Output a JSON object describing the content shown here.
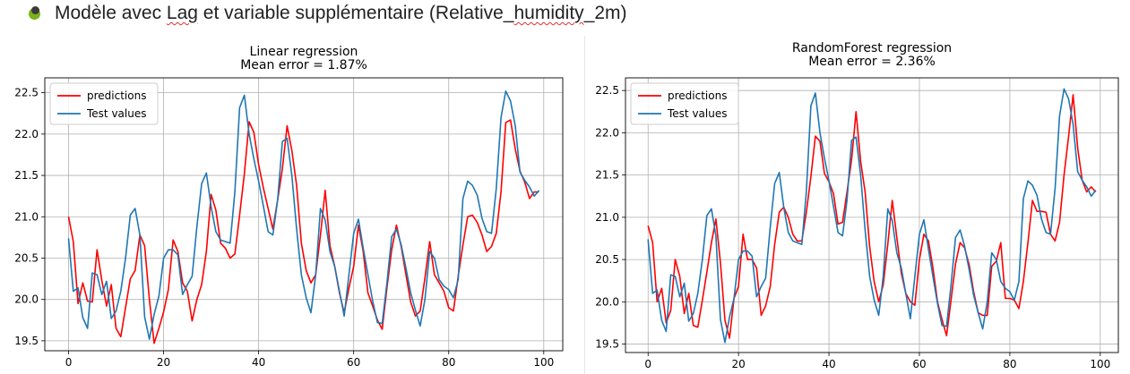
{
  "heading": {
    "prefix": "Modèle avec ",
    "lag_word": "Lag",
    "middle": " et variable supplémentaire (Relative_",
    "humidity_word": "humidity",
    "suffix": "_2m)"
  },
  "colors": {
    "predictions": "#ff0000",
    "test_values": "#1f77b4",
    "bullet": "#7ab317"
  },
  "chart_data": [
    {
      "type": "line",
      "title": "Linear regression",
      "subtitle": "Mean error = 1.87%",
      "xlim": [
        -5,
        104
      ],
      "ylim": [
        19.38,
        22.68
      ],
      "xticks": [
        0,
        20,
        40,
        60,
        80,
        100
      ],
      "yticks": [
        19.5,
        20.0,
        20.5,
        21.0,
        21.5,
        22.0,
        22.5
      ],
      "grid": true,
      "legend": "top-left",
      "series": [
        {
          "name": "predictions",
          "color": "#ff0000",
          "x": [
            0,
            1,
            2,
            3,
            4,
            5,
            6,
            7,
            8,
            9,
            10,
            11,
            12,
            13,
            14,
            15,
            16,
            17,
            18,
            19,
            20,
            21,
            22,
            23,
            24,
            25,
            26,
            27,
            28,
            29,
            30,
            31,
            32,
            33,
            34,
            35,
            36,
            37,
            38,
            39,
            40,
            41,
            42,
            43,
            44,
            45,
            46,
            47,
            48,
            49,
            50,
            51,
            52,
            53,
            54,
            55,
            56,
            57,
            58,
            59,
            60,
            61,
            62,
            63,
            64,
            65,
            66,
            67,
            68,
            69,
            70,
            71,
            72,
            73,
            74,
            75,
            76,
            77,
            78,
            79,
            80,
            81,
            82,
            83,
            84,
            85,
            86,
            87,
            88,
            89,
            90,
            91,
            92,
            93,
            94,
            95,
            96,
            97,
            98,
            99
          ],
          "values": [
            21.0,
            20.7,
            19.95,
            20.2,
            19.98,
            19.97,
            20.6,
            20.23,
            19.92,
            20.18,
            19.65,
            19.55,
            19.9,
            20.25,
            20.35,
            20.78,
            20.65,
            20.0,
            19.47,
            19.65,
            19.85,
            20.12,
            20.72,
            20.58,
            20.2,
            20.1,
            19.74,
            20.0,
            20.18,
            20.58,
            21.27,
            21.08,
            20.68,
            20.62,
            20.5,
            20.55,
            21.02,
            21.52,
            22.15,
            22.02,
            21.63,
            21.35,
            21.1,
            20.85,
            21.2,
            21.58,
            22.1,
            21.8,
            21.38,
            20.68,
            20.35,
            20.2,
            20.3,
            20.78,
            21.32,
            20.65,
            20.4,
            20.08,
            19.84,
            20.14,
            20.4,
            20.9,
            20.58,
            20.08,
            19.92,
            19.75,
            19.64,
            20.14,
            20.6,
            20.9,
            20.64,
            20.3,
            19.97,
            19.8,
            19.86,
            20.26,
            20.7,
            20.3,
            20.2,
            20.1,
            19.9,
            19.86,
            20.28,
            20.66,
            21.0,
            21.02,
            20.93,
            20.78,
            20.58,
            20.64,
            20.8,
            21.3,
            22.14,
            22.17,
            21.82,
            21.55,
            21.42,
            21.22,
            21.3,
            21.3
          ]
        },
        {
          "name": "Test values",
          "color": "#1f77b4",
          "x": [
            0,
            1,
            2,
            3,
            4,
            5,
            6,
            7,
            8,
            9,
            10,
            11,
            12,
            13,
            14,
            15,
            16,
            17,
            18,
            19,
            20,
            21,
            22,
            23,
            24,
            25,
            26,
            27,
            28,
            29,
            30,
            31,
            32,
            33,
            34,
            35,
            36,
            37,
            38,
            39,
            40,
            41,
            42,
            43,
            44,
            45,
            46,
            47,
            48,
            49,
            50,
            51,
            52,
            53,
            54,
            55,
            56,
            57,
            58,
            59,
            60,
            61,
            62,
            63,
            64,
            65,
            66,
            67,
            68,
            69,
            70,
            71,
            72,
            73,
            74,
            75,
            76,
            77,
            78,
            79,
            80,
            81,
            82,
            83,
            84,
            85,
            86,
            87,
            88,
            89,
            90,
            91,
            92,
            93,
            94,
            95,
            96,
            97,
            98,
            99
          ],
          "values": [
            20.74,
            20.1,
            20.14,
            19.78,
            19.65,
            20.32,
            20.3,
            20.06,
            20.22,
            19.77,
            19.86,
            20.1,
            20.5,
            21.02,
            21.1,
            20.78,
            19.79,
            19.52,
            19.82,
            20.04,
            20.5,
            20.6,
            20.6,
            20.54,
            20.06,
            20.18,
            20.28,
            20.88,
            21.4,
            21.53,
            21.12,
            20.82,
            20.72,
            20.7,
            20.68,
            21.3,
            22.32,
            22.47,
            22.0,
            21.7,
            21.43,
            21.13,
            20.82,
            20.78,
            21.2,
            21.91,
            21.95,
            21.5,
            20.85,
            20.3,
            20.02,
            19.84,
            20.3,
            21.1,
            20.96,
            20.58,
            20.4,
            20.1,
            19.8,
            20.3,
            20.8,
            20.97,
            20.62,
            20.3,
            19.98,
            19.72,
            19.71,
            20.2,
            20.76,
            20.85,
            20.66,
            20.38,
            20.08,
            19.87,
            19.68,
            20.0,
            20.58,
            20.5,
            20.24,
            20.16,
            20.12,
            20.02,
            20.24,
            21.22,
            21.43,
            21.38,
            21.26,
            20.98,
            20.82,
            20.8,
            21.34,
            22.2,
            22.52,
            22.4,
            22.1,
            21.54,
            21.44,
            21.36,
            21.25,
            21.32
          ]
        }
      ]
    },
    {
      "type": "line",
      "title": "RandomForest regression",
      "subtitle": "Mean error = 2.36%",
      "xlim": [
        -5,
        104
      ],
      "ylim": [
        19.4,
        22.65
      ],
      "xticks": [
        0,
        20,
        40,
        60,
        80,
        100
      ],
      "yticks": [
        19.5,
        20.0,
        20.5,
        21.0,
        21.5,
        22.0,
        22.5
      ],
      "grid": true,
      "legend": "top-left",
      "series": [
        {
          "name": "predictions",
          "color": "#ff0000",
          "x": [
            0,
            1,
            2,
            3,
            4,
            5,
            6,
            7,
            8,
            9,
            10,
            11,
            12,
            13,
            14,
            15,
            16,
            17,
            18,
            19,
            20,
            21,
            22,
            23,
            24,
            25,
            26,
            27,
            28,
            29,
            30,
            31,
            32,
            33,
            34,
            35,
            36,
            37,
            38,
            39,
            40,
            41,
            42,
            43,
            44,
            45,
            46,
            47,
            48,
            49,
            50,
            51,
            52,
            53,
            54,
            55,
            56,
            57,
            58,
            59,
            60,
            61,
            62,
            63,
            64,
            65,
            66,
            67,
            68,
            69,
            70,
            71,
            72,
            73,
            74,
            75,
            76,
            77,
            78,
            79,
            80,
            81,
            82,
            83,
            84,
            85,
            86,
            87,
            88,
            89,
            90,
            91,
            92,
            93,
            94,
            95,
            96,
            97,
            98,
            99
          ],
          "values": [
            20.9,
            20.7,
            20.0,
            20.16,
            19.75,
            19.9,
            20.5,
            20.3,
            19.86,
            20.1,
            19.72,
            19.7,
            20.02,
            20.35,
            20.7,
            20.98,
            20.46,
            19.78,
            19.57,
            20.04,
            20.18,
            20.8,
            20.5,
            20.5,
            20.4,
            19.84,
            19.95,
            20.18,
            20.68,
            21.06,
            21.12,
            21.0,
            20.8,
            20.72,
            20.72,
            21.06,
            21.48,
            21.96,
            21.9,
            21.52,
            21.42,
            21.28,
            20.92,
            20.94,
            21.3,
            21.68,
            22.25,
            21.66,
            21.3,
            20.65,
            20.24,
            20.0,
            20.2,
            20.68,
            21.2,
            20.76,
            20.34,
            20.1,
            20.0,
            19.96,
            20.5,
            20.8,
            20.72,
            20.4,
            20.0,
            19.79,
            19.6,
            20.02,
            20.45,
            20.7,
            20.64,
            20.44,
            20.12,
            19.87,
            19.84,
            19.84,
            20.42,
            20.48,
            20.7,
            20.04,
            20.04,
            20.02,
            19.92,
            20.24,
            20.7,
            21.2,
            21.07,
            21.07,
            21.06,
            20.8,
            20.72,
            20.94,
            21.5,
            21.96,
            22.45,
            21.82,
            21.44,
            21.3,
            21.36,
            21.3
          ]
        },
        {
          "name": "Test values",
          "color": "#1f77b4",
          "x": [
            0,
            1,
            2,
            3,
            4,
            5,
            6,
            7,
            8,
            9,
            10,
            11,
            12,
            13,
            14,
            15,
            16,
            17,
            18,
            19,
            20,
            21,
            22,
            23,
            24,
            25,
            26,
            27,
            28,
            29,
            30,
            31,
            32,
            33,
            34,
            35,
            36,
            37,
            38,
            39,
            40,
            41,
            42,
            43,
            44,
            45,
            46,
            47,
            48,
            49,
            50,
            51,
            52,
            53,
            54,
            55,
            56,
            57,
            58,
            59,
            60,
            61,
            62,
            63,
            64,
            65,
            66,
            67,
            68,
            69,
            70,
            71,
            72,
            73,
            74,
            75,
            76,
            77,
            78,
            79,
            80,
            81,
            82,
            83,
            84,
            85,
            86,
            87,
            88,
            89,
            90,
            91,
            92,
            93,
            94,
            95,
            96,
            97,
            98,
            99
          ],
          "values": [
            20.74,
            20.1,
            20.14,
            19.78,
            19.65,
            20.32,
            20.3,
            20.06,
            20.22,
            19.77,
            19.86,
            20.1,
            20.5,
            21.02,
            21.1,
            20.78,
            19.79,
            19.52,
            19.82,
            20.04,
            20.5,
            20.6,
            20.6,
            20.54,
            20.06,
            20.18,
            20.28,
            20.88,
            21.4,
            21.53,
            21.12,
            20.82,
            20.72,
            20.7,
            20.68,
            21.3,
            22.32,
            22.47,
            22.0,
            21.7,
            21.43,
            21.13,
            20.82,
            20.78,
            21.2,
            21.91,
            21.95,
            21.5,
            20.85,
            20.3,
            20.02,
            19.84,
            20.3,
            21.1,
            20.96,
            20.58,
            20.4,
            20.1,
            19.8,
            20.3,
            20.8,
            20.97,
            20.62,
            20.3,
            19.98,
            19.72,
            19.71,
            20.2,
            20.76,
            20.85,
            20.66,
            20.38,
            20.08,
            19.87,
            19.68,
            20.0,
            20.58,
            20.5,
            20.24,
            20.16,
            20.12,
            20.02,
            20.24,
            21.22,
            21.43,
            21.38,
            21.26,
            20.98,
            20.82,
            20.8,
            21.34,
            22.2,
            22.52,
            22.4,
            22.1,
            21.54,
            21.44,
            21.36,
            21.25,
            21.32
          ]
        }
      ]
    }
  ]
}
